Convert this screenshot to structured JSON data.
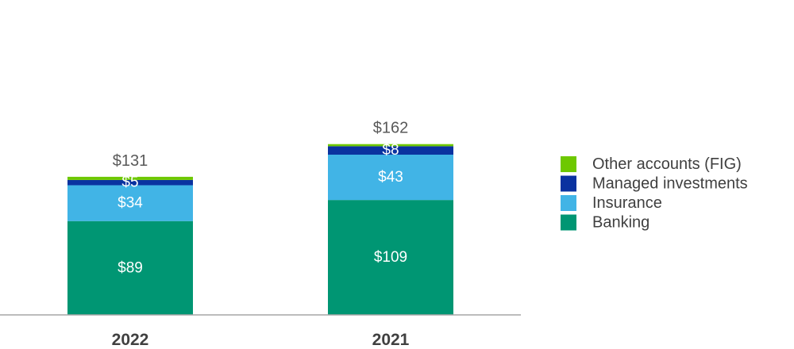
{
  "chart_data": {
    "type": "bar",
    "stacked": true,
    "categories": [
      "2022",
      "2021"
    ],
    "series": [
      {
        "name": "Banking",
        "color": "#009673",
        "values": [
          89,
          109
        ],
        "labels": [
          "$89",
          "$109"
        ]
      },
      {
        "name": "Insurance",
        "color": "#41B4E6",
        "values": [
          34,
          43
        ],
        "labels": [
          "$34",
          "$43"
        ]
      },
      {
        "name": "Managed investments",
        "color": "#0A32A0",
        "values": [
          5,
          8
        ],
        "labels": [
          "$5",
          "$8"
        ]
      },
      {
        "name": "Other accounts (FIG)",
        "color": "#6EC800",
        "values": [
          3,
          2
        ],
        "labels": [
          "",
          ""
        ]
      }
    ],
    "totals": [
      "$131",
      "$162"
    ],
    "legend_order": [
      "Other accounts (FIG)",
      "Managed investments",
      "Insurance",
      "Banking"
    ],
    "legend_position": "right",
    "grid": false,
    "ylim": [
      0,
      180
    ]
  }
}
